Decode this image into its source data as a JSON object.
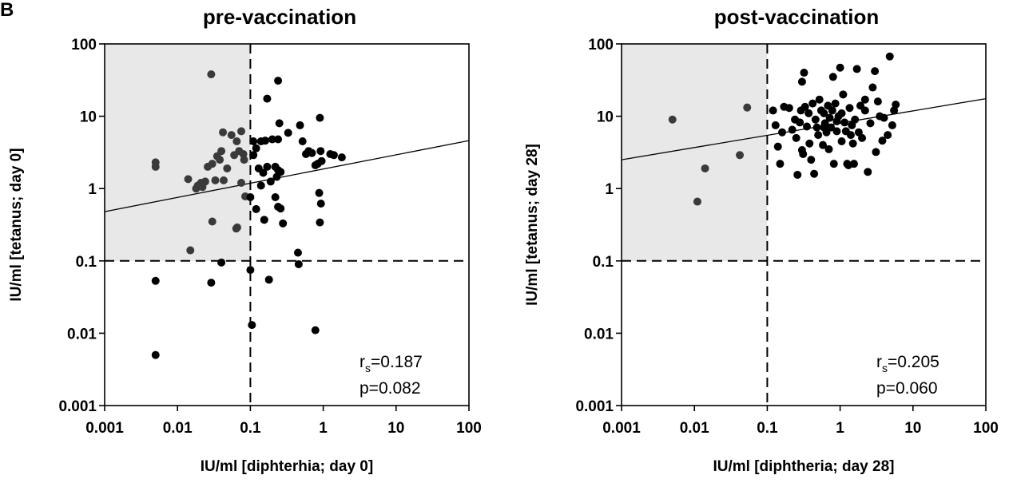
{
  "panel_letter": "B",
  "chart_data": [
    {
      "type": "scatter",
      "title": "pre-vaccination",
      "xlabel": "IU/ml [diphterhia; day 0]",
      "ylabel": "IU/ml [tetanus; day 0]",
      "xscale": "log",
      "yscale": "log",
      "xlim": [
        0.001,
        100
      ],
      "ylim": [
        0.001,
        100
      ],
      "xticks": [
        "0.001",
        "0.01",
        "0.1",
        "1",
        "10",
        "100"
      ],
      "yticks": [
        "0.001",
        "0.01",
        "0.1",
        "1",
        "10",
        "100"
      ],
      "threshold_x": 0.1,
      "threshold_y": 0.1,
      "shaded_region": "x < 0.1 and y > 0.1",
      "stats": {
        "r_label": "r",
        "r_sub": "s",
        "r_value": "=0.187",
        "p_text": "p=0.082"
      },
      "regression": {
        "x": [
          0.001,
          100
        ],
        "y": [
          0.48,
          4.6
        ]
      },
      "points": [
        [
          0.029,
          38
        ],
        [
          0.005,
          2.3
        ],
        [
          0.005,
          2.0
        ],
        [
          0.014,
          1.35
        ],
        [
          0.018,
          1.0
        ],
        [
          0.019,
          1.1
        ],
        [
          0.021,
          1.2
        ],
        [
          0.022,
          1.05
        ],
        [
          0.024,
          1.25
        ],
        [
          0.026,
          2.0
        ],
        [
          0.03,
          2.2
        ],
        [
          0.033,
          1.3
        ],
        [
          0.035,
          2.8
        ],
        [
          0.038,
          2.5
        ],
        [
          0.04,
          3.3
        ],
        [
          0.042,
          6.0
        ],
        [
          0.043,
          1.3
        ],
        [
          0.048,
          1.9
        ],
        [
          0.055,
          5.5
        ],
        [
          0.06,
          2.9
        ],
        [
          0.065,
          4.5
        ],
        [
          0.07,
          3.3
        ],
        [
          0.075,
          6.2
        ],
        [
          0.08,
          3.0
        ],
        [
          0.082,
          2.5
        ],
        [
          0.075,
          1.2
        ],
        [
          0.085,
          0.78
        ],
        [
          0.066,
          0.29
        ],
        [
          0.064,
          0.28
        ],
        [
          0.03,
          0.35
        ],
        [
          0.015,
          0.14
        ],
        [
          0.04,
          0.095
        ],
        [
          0.005,
          0.053
        ],
        [
          0.029,
          0.05
        ],
        [
          0.005,
          0.005
        ],
        [
          0.1,
          0.075
        ],
        [
          0.105,
          0.013
        ],
        [
          0.18,
          0.055
        ],
        [
          0.78,
          0.011
        ],
        [
          0.45,
          0.13
        ],
        [
          0.46,
          0.09
        ],
        [
          0.1,
          0.76
        ],
        [
          0.12,
          0.52
        ],
        [
          0.155,
          0.37
        ],
        [
          0.22,
          0.76
        ],
        [
          0.24,
          0.56
        ],
        [
          0.28,
          0.33
        ],
        [
          0.26,
          0.53
        ],
        [
          0.11,
          2.9
        ],
        [
          0.13,
          1.9
        ],
        [
          0.15,
          1.65
        ],
        [
          0.14,
          1.1
        ],
        [
          0.17,
          17.5
        ],
        [
          0.2,
          4.8
        ],
        [
          0.24,
          31
        ],
        [
          0.25,
          8.0
        ],
        [
          0.24,
          4.8
        ],
        [
          0.22,
          2.0
        ],
        [
          0.24,
          1.8
        ],
        [
          0.23,
          1.45
        ],
        [
          0.17,
          2.0
        ],
        [
          0.26,
          1.7
        ],
        [
          0.33,
          5.9
        ],
        [
          0.48,
          7.5
        ],
        [
          0.52,
          4.5
        ],
        [
          0.58,
          3.0
        ],
        [
          0.63,
          3.3
        ],
        [
          0.7,
          3.1
        ],
        [
          0.84,
          2.2
        ],
        [
          0.9,
          9.5
        ],
        [
          0.92,
          3.3
        ],
        [
          0.95,
          2.4
        ],
        [
          1.25,
          3.0
        ],
        [
          1.4,
          2.9
        ],
        [
          1.8,
          2.7
        ],
        [
          0.78,
          2.1
        ],
        [
          0.88,
          0.87
        ],
        [
          0.93,
          0.62
        ],
        [
          0.9,
          0.34
        ],
        [
          0.14,
          4.5
        ],
        [
          0.11,
          4.5
        ],
        [
          0.16,
          4.6
        ],
        [
          0.12,
          3.6
        ],
        [
          0.19,
          1.25
        ]
      ]
    },
    {
      "type": "scatter",
      "title": "post-vaccination",
      "xlabel": "IU/ml [diphtheria; day 28]",
      "ylabel": "IU/ml [tetanus; day 28]",
      "xscale": "log",
      "yscale": "log",
      "xlim": [
        0.001,
        100
      ],
      "ylim": [
        0.001,
        100
      ],
      "xticks": [
        "0.001",
        "0.01",
        "0.1",
        "1",
        "10",
        "100"
      ],
      "yticks": [
        "0.001",
        "0.01",
        "0.1",
        "1",
        "10",
        "100"
      ],
      "threshold_x": 0.1,
      "threshold_y": 0.1,
      "shaded_region": "x < 0.1 and y > 0.1",
      "stats": {
        "r_label": "r",
        "r_sub": "s",
        "r_value": "=0.205",
        "p_text": "p=0.060"
      },
      "regression": {
        "x": [
          0.001,
          100
        ],
        "y": [
          2.5,
          17.5
        ]
      },
      "points": [
        [
          0.005,
          9.0
        ],
        [
          0.011,
          0.66
        ],
        [
          0.014,
          1.9
        ],
        [
          0.042,
          2.9
        ],
        [
          0.053,
          13.2
        ],
        [
          0.12,
          12
        ],
        [
          0.13,
          7.5
        ],
        [
          0.14,
          3.8
        ],
        [
          0.16,
          6.0
        ],
        [
          0.15,
          2.2
        ],
        [
          0.17,
          13.5
        ],
        [
          0.2,
          13
        ],
        [
          0.22,
          6.5
        ],
        [
          0.24,
          9.0
        ],
        [
          0.25,
          5.0
        ],
        [
          0.26,
          1.55
        ],
        [
          0.28,
          8.2
        ],
        [
          0.29,
          12
        ],
        [
          0.3,
          3.4
        ],
        [
          0.31,
          3.0
        ],
        [
          0.3,
          30
        ],
        [
          0.32,
          40
        ],
        [
          0.33,
          13.5
        ],
        [
          0.35,
          7.2
        ],
        [
          0.37,
          11
        ],
        [
          0.38,
          4.2
        ],
        [
          0.4,
          2.5
        ],
        [
          0.42,
          15
        ],
        [
          0.44,
          1.6
        ],
        [
          0.46,
          9.0
        ],
        [
          0.48,
          7.0
        ],
        [
          0.5,
          5.5
        ],
        [
          0.52,
          17
        ],
        [
          0.55,
          12
        ],
        [
          0.58,
          4.0
        ],
        [
          0.6,
          11
        ],
        [
          0.62,
          8.0
        ],
        [
          0.65,
          6.0
        ],
        [
          0.68,
          14
        ],
        [
          0.7,
          3.5
        ],
        [
          0.72,
          9.5
        ],
        [
          0.75,
          7.0
        ],
        [
          0.78,
          12
        ],
        [
          0.8,
          35
        ],
        [
          0.82,
          2.2
        ],
        [
          0.86,
          15
        ],
        [
          0.9,
          6.2
        ],
        [
          0.95,
          10
        ],
        [
          1.0,
          47
        ],
        [
          1.05,
          4.5
        ],
        [
          1.1,
          20
        ],
        [
          1.15,
          8.2
        ],
        [
          1.2,
          6.2
        ],
        [
          1.25,
          2.2
        ],
        [
          1.3,
          2.1
        ],
        [
          1.35,
          13
        ],
        [
          1.4,
          5.5
        ],
        [
          1.45,
          7.5
        ],
        [
          1.5,
          4.2
        ],
        [
          1.55,
          2.2
        ],
        [
          1.6,
          9.0
        ],
        [
          1.7,
          45
        ],
        [
          1.8,
          6.0
        ],
        [
          1.9,
          14
        ],
        [
          2.0,
          5.0
        ],
        [
          2.2,
          12
        ],
        [
          2.4,
          1.7
        ],
        [
          2.6,
          8.0
        ],
        [
          2.8,
          25
        ],
        [
          3.0,
          42
        ],
        [
          3.1,
          3.2
        ],
        [
          3.3,
          16
        ],
        [
          3.5,
          10
        ],
        [
          3.8,
          4.6
        ],
        [
          4.0,
          9.5
        ],
        [
          4.5,
          5.5
        ],
        [
          4.8,
          67
        ],
        [
          5.2,
          7.5
        ],
        [
          5.5,
          12
        ],
        [
          5.8,
          14.5
        ],
        [
          2.2,
          17
        ],
        [
          1.05,
          11
        ],
        [
          0.9,
          8.5
        ],
        [
          0.6,
          7.0
        ]
      ]
    }
  ]
}
